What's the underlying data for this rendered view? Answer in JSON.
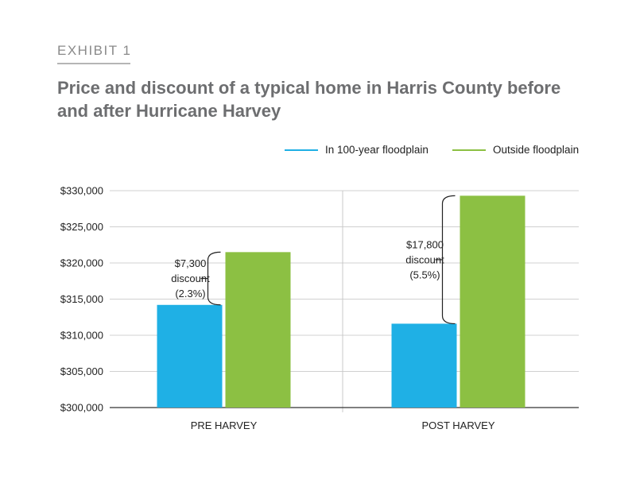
{
  "header": {
    "exhibit": "EXHIBIT 1",
    "title": "Price and discount of a typical home in Harris County before and after Hurricane Harvey"
  },
  "colors": {
    "floodplain": "#1fb0e5",
    "outside": "#8cc043"
  },
  "chart_data": {
    "type": "bar",
    "title": "Price and discount of a typical home in Harris County before and after Hurricane Harvey",
    "xlabel": "",
    "ylabel": "",
    "categories": [
      "PRE HARVEY",
      "POST HARVEY"
    ],
    "series": [
      {
        "name": "In 100-year floodplain",
        "values": [
          314200,
          311600
        ]
      },
      {
        "name": "Outside floodplain",
        "values": [
          321500,
          329300
        ]
      }
    ],
    "ylim": [
      300000,
      330000
    ],
    "yticks": [
      {
        "value": 300000,
        "label": "$300,000"
      },
      {
        "value": 305000,
        "label": "$305,000"
      },
      {
        "value": 310000,
        "label": "$310,000"
      },
      {
        "value": 315000,
        "label": "$315,000"
      },
      {
        "value": 320000,
        "label": "$320,000"
      },
      {
        "value": 325000,
        "label": "$325,000"
      },
      {
        "value": 330000,
        "label": "$330,000"
      }
    ],
    "grid": true,
    "legend_position": "top-right",
    "annotations": [
      {
        "category": "PRE HARVEY",
        "lines": [
          "$7,300",
          "discount",
          "(2.3%)"
        ]
      },
      {
        "category": "POST HARVEY",
        "lines": [
          "$17,800",
          "discount",
          "(5.5%)"
        ]
      }
    ]
  }
}
